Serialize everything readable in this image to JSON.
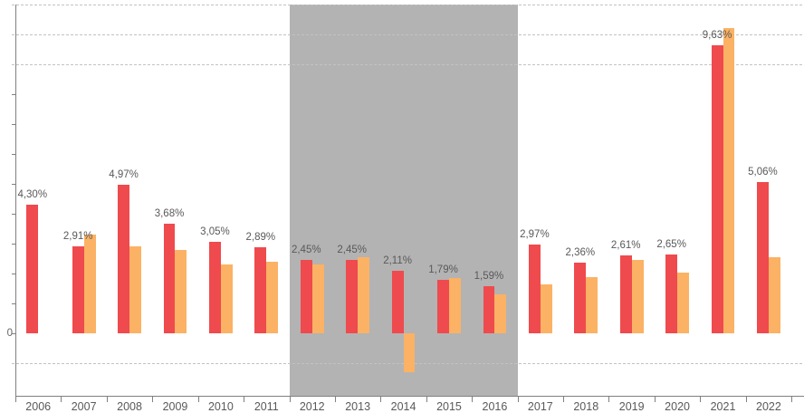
{
  "chart_data": {
    "type": "bar",
    "title": "",
    "unit": "%",
    "categories": [
      "2006",
      "2007",
      "2008",
      "2009",
      "2010",
      "2011",
      "2012",
      "2013",
      "2014",
      "2015",
      "2016",
      "2017",
      "2018",
      "2019",
      "2020",
      "2021",
      "2022"
    ],
    "series": [
      {
        "name": "red-series",
        "color": "#ef4a4d",
        "values": [
          4.3,
          2.91,
          4.97,
          3.68,
          3.05,
          2.89,
          2.45,
          2.45,
          2.11,
          1.79,
          1.59,
          2.97,
          2.36,
          2.61,
          2.65,
          9.63,
          5.06
        ]
      },
      {
        "name": "orange-series",
        "color": "#fbb264",
        "values": [
          null,
          3.3,
          2.9,
          2.8,
          2.3,
          2.4,
          2.3,
          2.55,
          -1.3,
          1.85,
          1.3,
          1.65,
          1.9,
          2.45,
          2.05,
          10.2,
          2.55
        ]
      }
    ],
    "bar_labels": [
      "4,30%",
      "2,91%",
      "4,97%",
      "3,68%",
      "3,05%",
      "2,89%",
      "2,45%",
      "2,45%",
      "2,11%",
      "1,79%",
      "1,59%",
      "2,97%",
      "2,36%",
      "2,61%",
      "2,65%",
      "9,63%",
      "5,06%"
    ],
    "labeled_series": "red-series",
    "y_axis": {
      "zero_label": "0",
      "tick_step_pct": 1,
      "solid_tick_levels": [
        0,
        1,
        2,
        3,
        4,
        5,
        6,
        7,
        8
      ],
      "dashed_gridline_levels": [
        11,
        10,
        9,
        -1
      ],
      "range": [
        -2.1,
        11.0
      ]
    },
    "x_axis": {
      "gridlines": false
    },
    "highlight_band": {
      "from_category": "2012",
      "to_category": "2016",
      "color": "#b3b3b3"
    },
    "legend": {
      "visible": false
    },
    "colors": {
      "gridline": "#c2c2c2",
      "axis": "#808080",
      "label_text": "#595959"
    }
  }
}
